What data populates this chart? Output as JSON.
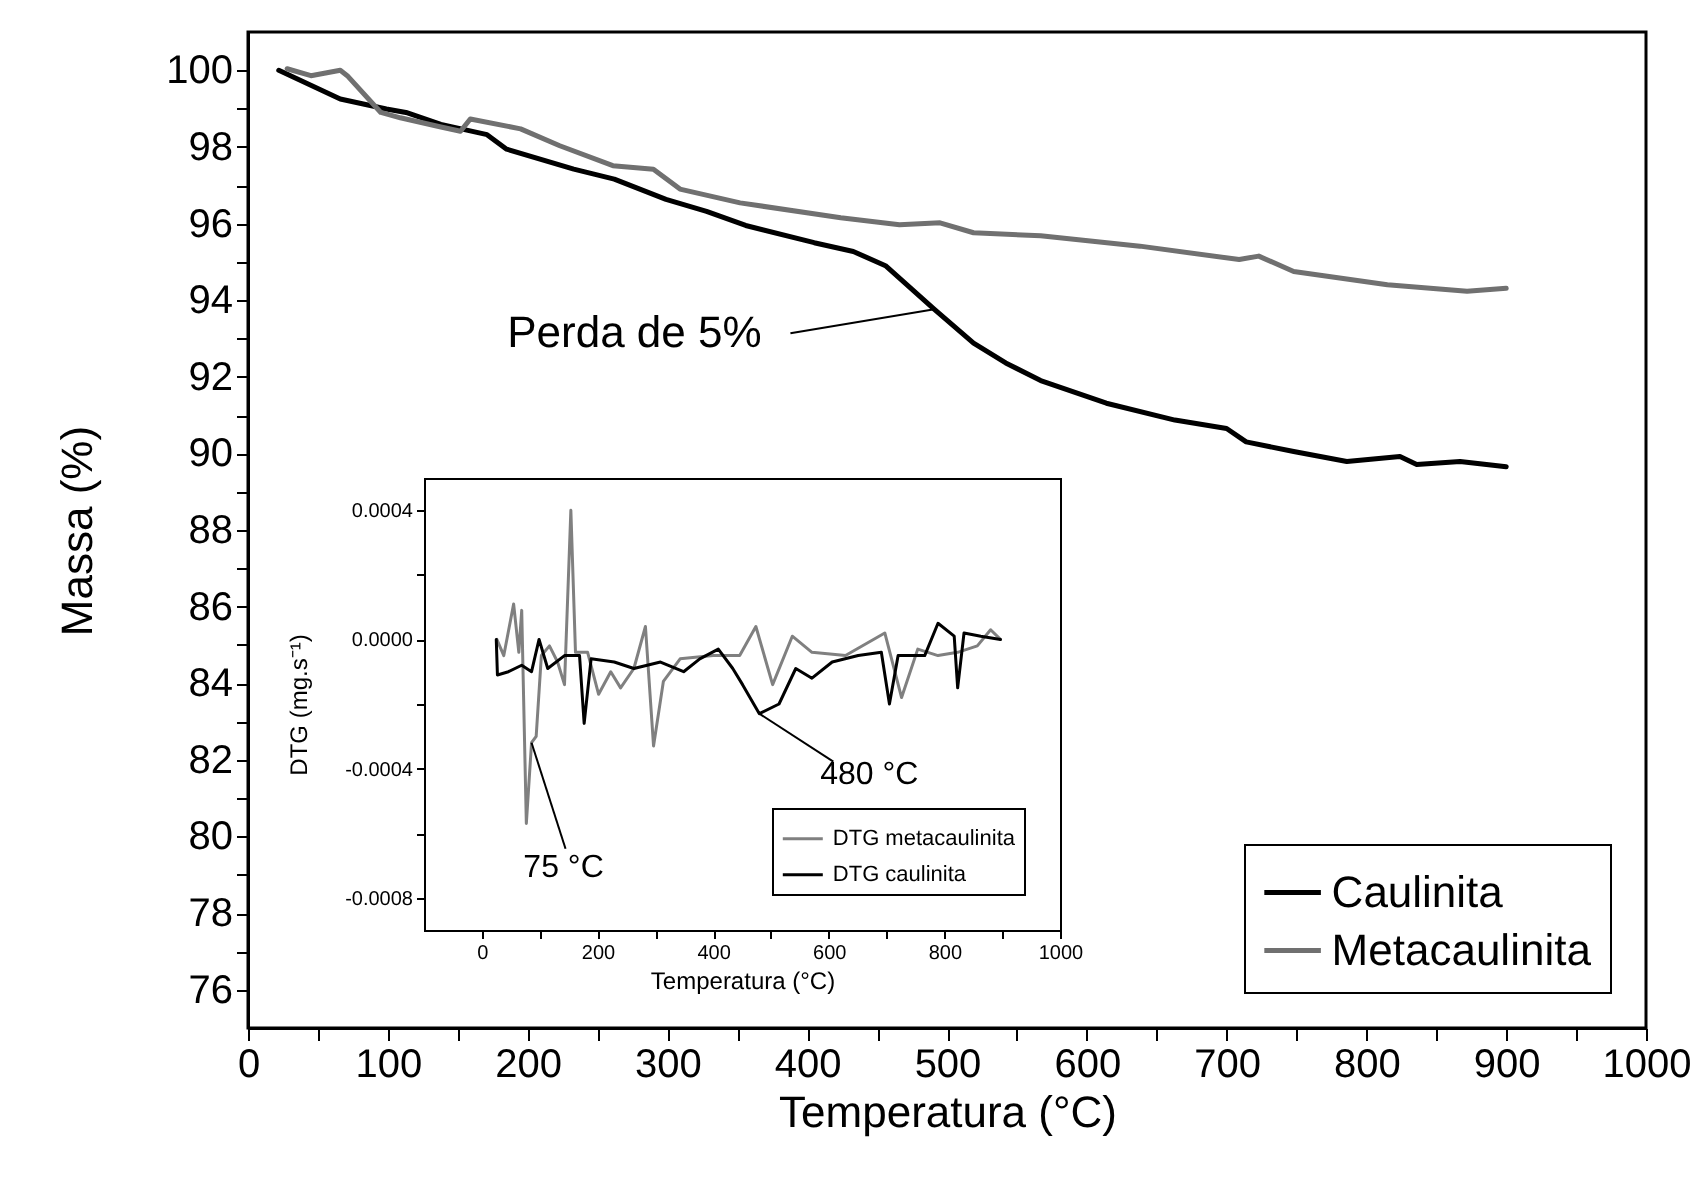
{
  "chart_data": [
    {
      "type": "line",
      "xlabel": "Temperatura (°C)",
      "ylabel": "Massa (%)",
      "xlim": [
        0,
        1000
      ],
      "ylim": [
        75,
        101
      ],
      "xticks": [
        0,
        {
          "value": 50,
          "label": null
        },
        100,
        {
          "value": 150,
          "label": null
        },
        200,
        {
          "value": 250,
          "label": null
        },
        300,
        {
          "value": 350,
          "label": null
        },
        400,
        {
          "value": 450,
          "label": null
        },
        500,
        {
          "value": 550,
          "label": null
        },
        600,
        {
          "value": 650,
          "label": null
        },
        700,
        {
          "value": 750,
          "label": null
        },
        800,
        {
          "value": 850,
          "label": null
        },
        900,
        {
          "value": 950,
          "label": null
        },
        1000
      ],
      "yticks": [
        76,
        {
          "value": 77,
          "label": null
        },
        78,
        {
          "value": 79,
          "label": null
        },
        80,
        {
          "value": 81,
          "label": null
        },
        82,
        {
          "value": 83,
          "label": null
        },
        84,
        {
          "value": 85,
          "label": null
        },
        86,
        {
          "value": 87,
          "label": null
        },
        88,
        {
          "value": 89,
          "label": null
        },
        90,
        {
          "value": 91,
          "label": null
        },
        92,
        {
          "value": 93,
          "label": null
        },
        94,
        {
          "value": 95,
          "label": null
        },
        96,
        {
          "value": 97,
          "label": null
        },
        98,
        {
          "value": 99,
          "label": null
        },
        100
      ],
      "legend": "bottom right",
      "line_style": "solid",
      "marker": "none",
      "series": [
        {
          "name": "Caulinita",
          "color": "#000000",
          "x": [
            22,
            66,
            99,
            113,
            138,
            171,
            185,
            233,
            262,
            299,
            328,
            356,
            405,
            433,
            456,
            491,
            519,
            542,
            567,
            614,
            663,
            700,
            714,
            748,
            786,
            824,
            836,
            867,
            900
          ],
          "values": [
            100.0,
            99.25,
            98.99,
            98.9,
            98.59,
            98.32,
            97.94,
            97.42,
            97.16,
            96.63,
            96.32,
            95.95,
            95.5,
            95.27,
            94.9,
            93.76,
            92.88,
            92.36,
            91.9,
            91.31,
            90.87,
            90.65,
            90.3,
            90.05,
            89.79,
            89.92,
            89.71,
            89.79,
            89.65
          ]
        },
        {
          "name": "Metacaulinita",
          "color": "#707070",
          "x": [
            28,
            45,
            66,
            71,
            95,
            109,
            138,
            152,
            159,
            195,
            223,
            261,
            290,
            309,
            352,
            424,
            466,
            495,
            519,
            567,
            638,
            709,
            723,
            748,
            815,
            872,
            900
          ],
          "values": [
            100.04,
            99.86,
            100.0,
            99.86,
            98.9,
            98.76,
            98.52,
            98.41,
            98.73,
            98.47,
            98.03,
            97.51,
            97.42,
            96.9,
            96.54,
            96.15,
            95.97,
            96.02,
            95.76,
            95.68,
            95.41,
            95.06,
            95.15,
            94.75,
            94.4,
            94.23,
            94.31
          ]
        }
      ],
      "annotations": [
        {
          "text": "Perda de 5%",
          "x": 491,
          "y": 93.76
        }
      ]
    },
    {
      "type": "line",
      "xlabel": "Temperatura (°C)",
      "ylabel": "DTG (mg.s⁻¹)",
      "xlim": [
        -100,
        1000
      ],
      "ylim": [
        -0.0009,
        0.0005
      ],
      "xticks": [
        0,
        {
          "value": 100,
          "label": null
        },
        200,
        {
          "value": 300,
          "label": null
        },
        400,
        {
          "value": 500,
          "label": null
        },
        600,
        {
          "value": 700,
          "label": null
        },
        800,
        {
          "value": 900,
          "label": null
        },
        1000
      ],
      "yticks": [
        -0.0008,
        {
          "value": -0.0006,
          "label": null
        },
        -0.0004,
        {
          "value": -0.0002,
          "label": null
        },
        {
          "value": 0,
          "label": "0.0000"
        },
        {
          "value": 0.0002,
          "label": null
        },
        0.0004
      ],
      "legend": "bottom right",
      "line_style": "solid",
      "marker": "none",
      "series": [
        {
          "name": "DTG metacaulinita",
          "color": "#808080",
          "x": [
            26,
            38,
            55,
            64,
            69,
            77,
            86,
            94,
            103,
            117,
            131,
            143,
            154,
            162,
            183,
            202,
            223,
            240,
            263,
            283,
            297,
            314,
            343,
            400,
            446,
            474,
            503,
            537,
            571,
            629,
            697,
            726,
            754,
            789,
            823,
            857,
            880,
            897
          ],
          "values": [
            0,
            -5e-05,
            0.00011,
            -4e-05,
            9e-05,
            -0.00057,
            -0.00032,
            -0.0003,
            -5e-05,
            -2e-05,
            -7e-05,
            -0.00014,
            0.0004,
            -4e-05,
            -4e-05,
            -0.00017,
            -0.0001,
            -0.00015,
            -9e-05,
            4e-05,
            -0.00033,
            -0.00013,
            -6e-05,
            -5e-05,
            -5e-05,
            4e-05,
            -0.00014,
            1e-05,
            -4e-05,
            -5e-05,
            2e-05,
            -0.00018,
            -3e-05,
            -5e-05,
            -4e-05,
            -2e-05,
            3e-05,
            0
          ]
        },
        {
          "name": "DTG caulinita",
          "color": "#000000",
          "x": [
            25,
            27,
            46,
            69,
            86,
            99,
            114,
            143,
            169,
            177,
            189,
            229,
            263,
            309,
            349,
            377,
            409,
            434,
            451,
            480,
            514,
            543,
            571,
            606,
            651,
            691,
            705,
            720,
            766,
            789,
            817,
            823,
            834,
            863,
            897
          ],
          "values": [
            0,
            -0.00011,
            -0.0001,
            -8e-05,
            -0.0001,
            0,
            -9e-05,
            -5e-05,
            -5e-05,
            -0.00026,
            -6e-05,
            -7e-05,
            -9e-05,
            -7e-05,
            -0.0001,
            -6e-05,
            -3e-05,
            -9e-05,
            -0.00014,
            -0.00023,
            -0.0002,
            -9e-05,
            -0.00012,
            -7e-05,
            -5e-05,
            -4e-05,
            -0.0002,
            -5e-05,
            -5e-05,
            5e-05,
            1e-05,
            -0.00015,
            2e-05,
            1e-05,
            0
          ]
        }
      ],
      "annotations": [
        {
          "text": "75 °C",
          "x": 86,
          "y": -0.00032
        },
        {
          "text": "480 °C",
          "x": 480,
          "y": -0.00023
        }
      ]
    }
  ]
}
